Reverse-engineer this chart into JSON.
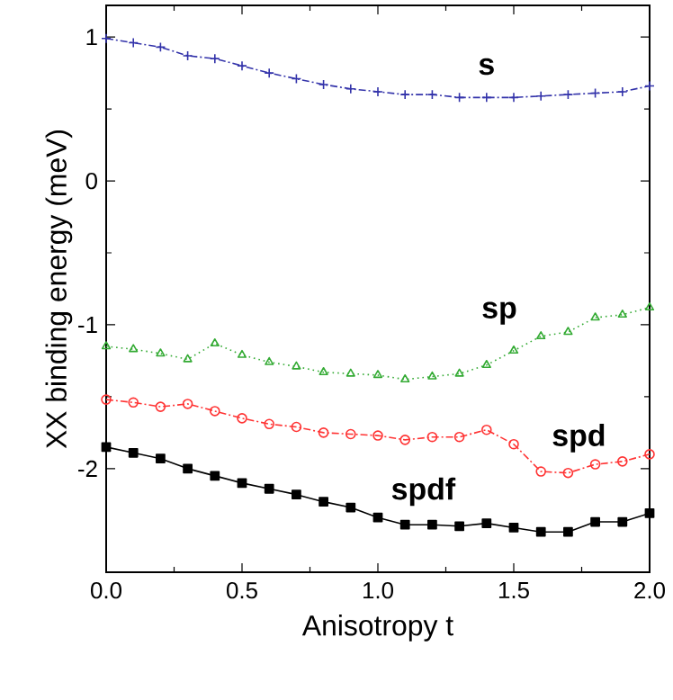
{
  "chart_data": {
    "type": "line",
    "xlabel": "Anisotropy t",
    "ylabel": "XX binding energy (meV)",
    "x": [
      0.0,
      0.1,
      0.2,
      0.3,
      0.4,
      0.5,
      0.6,
      0.7,
      0.8,
      0.9,
      1.0,
      1.1,
      1.2,
      1.3,
      1.4,
      1.5,
      1.6,
      1.7,
      1.8,
      1.9,
      2.0
    ],
    "xlim": [
      0,
      2.0
    ],
    "ylim": [
      -2.72,
      1.22
    ],
    "xticks": [
      {
        "value": 0,
        "label": "0.0"
      },
      0.5,
      {
        "value": 1,
        "label": "1.0"
      },
      1.5,
      {
        "value": 2,
        "label": "2.0"
      }
    ],
    "yticks": [
      -2,
      -1,
      0,
      1
    ],
    "series": [
      {
        "name": "s",
        "color": "#3333aa",
        "marker": "cross",
        "line_style": "dashed",
        "values": [
          0.99,
          0.96,
          0.93,
          0.87,
          0.85,
          0.8,
          0.75,
          0.71,
          0.67,
          0.64,
          0.62,
          0.6,
          0.6,
          0.58,
          0.58,
          0.58,
          0.59,
          0.6,
          0.61,
          0.62,
          0.66
        ]
      },
      {
        "name": "sp",
        "color": "#33aa33",
        "marker": "triangle",
        "line_style": "dotted",
        "values": [
          -1.15,
          -1.17,
          -1.2,
          -1.24,
          -1.13,
          -1.21,
          -1.26,
          -1.29,
          -1.33,
          -1.34,
          -1.35,
          -1.38,
          -1.36,
          -1.34,
          -1.28,
          -1.18,
          -1.08,
          -1.05,
          -0.95,
          -0.93,
          -0.88
        ]
      },
      {
        "name": "spd",
        "color": "#ff3333",
        "marker": "circle",
        "line_style": "dashed",
        "values": [
          -1.52,
          -1.54,
          -1.57,
          -1.55,
          -1.6,
          -1.65,
          -1.69,
          -1.71,
          -1.75,
          -1.76,
          -1.77,
          -1.8,
          -1.78,
          -1.78,
          -1.73,
          -1.83,
          -2.02,
          -2.03,
          -1.97,
          -1.95,
          -1.9
        ]
      },
      {
        "name": "spdf",
        "color": "#000000",
        "marker": "square",
        "line_style": "solid",
        "values": [
          -1.85,
          -1.89,
          -1.93,
          -2.0,
          -2.05,
          -2.1,
          -2.14,
          -2.18,
          -2.23,
          -2.27,
          -2.34,
          -2.39,
          -2.39,
          -2.4,
          -2.38,
          -2.41,
          -2.44,
          -2.44,
          -2.37,
          -2.37,
          -2.31
        ]
      }
    ]
  }
}
